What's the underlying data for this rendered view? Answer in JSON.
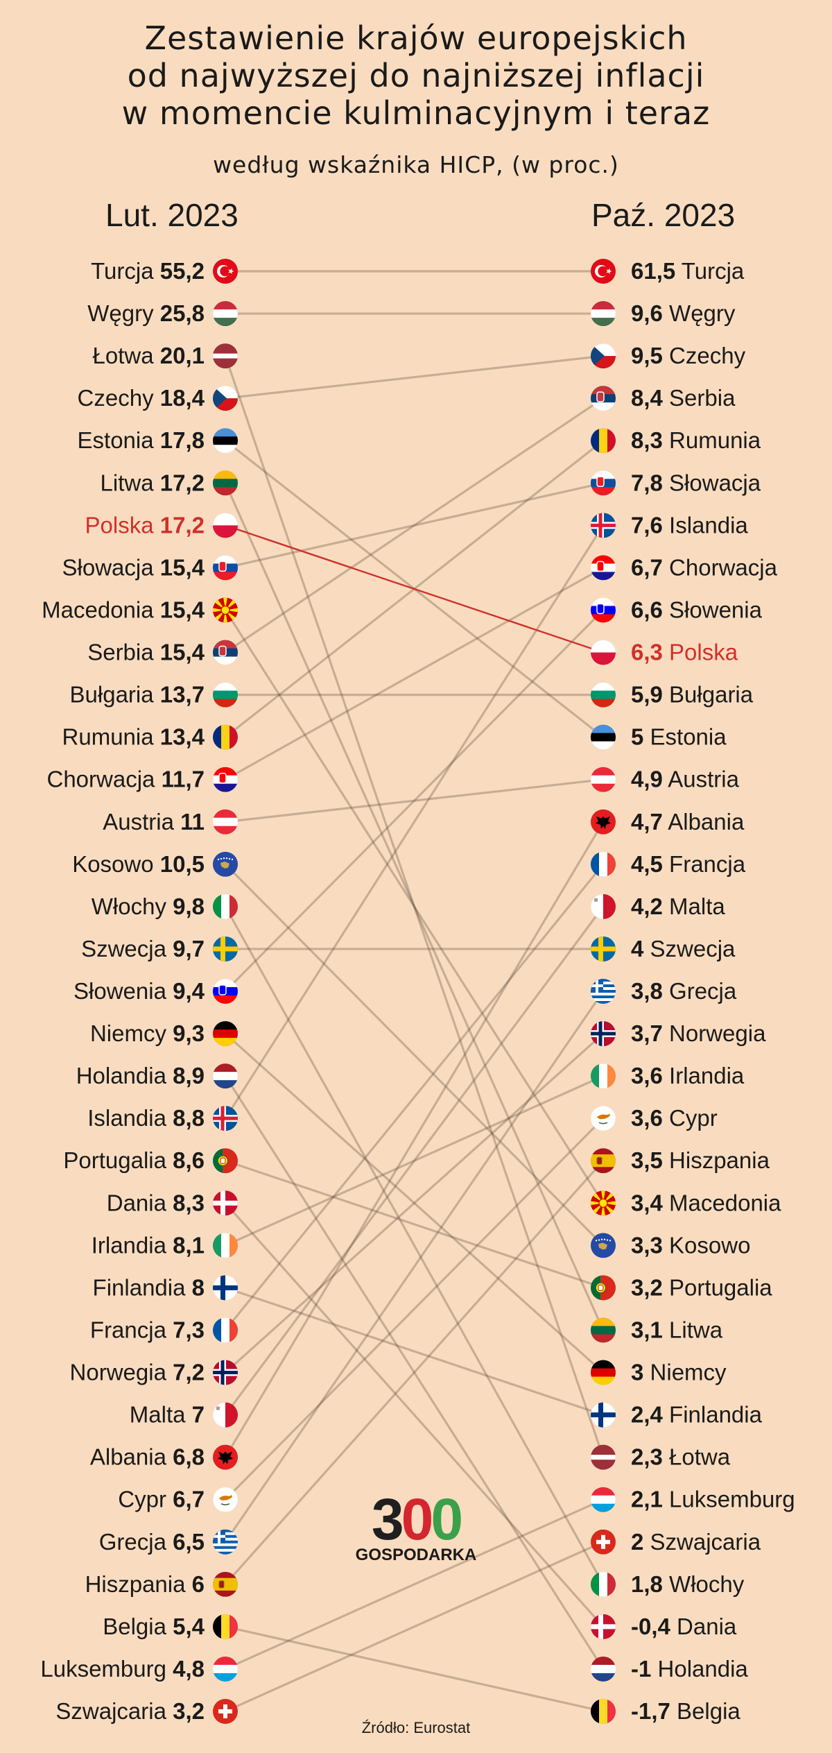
{
  "title": {
    "lines": [
      "Zestawienie krajów europejskich",
      "od najwyższej do najniższej inflacji",
      "w momencie kulminacyjnym i teraz"
    ],
    "subtitle": "według wskaźnika HICP, (w proc.)"
  },
  "left_header": "Lut. 2023",
  "right_header": "Paź. 2023",
  "source": "Źródło: Eurostat",
  "logo": {
    "digits": [
      "3",
      "0",
      "0"
    ],
    "text": "GOSPODARKA"
  },
  "colors": {
    "background": "#f9dcbf",
    "highlight": "#d0302b",
    "connector": "#5a4a3a"
  },
  "highlight_country": "Polska",
  "chart_data": {
    "type": "slope",
    "periods": [
      "Lut. 2023",
      "Paź. 2023"
    ],
    "left": [
      {
        "name": "Turcja",
        "value": "55,2",
        "flag": "turkey-flag"
      },
      {
        "name": "Węgry",
        "value": "25,8",
        "flag": "hungary-flag"
      },
      {
        "name": "Łotwa",
        "value": "20,1",
        "flag": "latvia-flag"
      },
      {
        "name": "Czechy",
        "value": "18,4",
        "flag": "czechia-flag"
      },
      {
        "name": "Estonia",
        "value": "17,8",
        "flag": "estonia-flag"
      },
      {
        "name": "Litwa",
        "value": "17,2",
        "flag": "lithuania-flag"
      },
      {
        "name": "Polska",
        "value": "17,2",
        "flag": "poland-flag"
      },
      {
        "name": "Słowacja",
        "value": "15,4",
        "flag": "slovakia-flag"
      },
      {
        "name": "Macedonia",
        "value": "15,4",
        "flag": "macedonia-flag"
      },
      {
        "name": "Serbia",
        "value": "15,4",
        "flag": "serbia-flag"
      },
      {
        "name": "Bułgaria",
        "value": "13,7",
        "flag": "bulgaria-flag"
      },
      {
        "name": "Rumunia",
        "value": "13,4",
        "flag": "romania-flag"
      },
      {
        "name": "Chorwacja",
        "value": "11,7",
        "flag": "croatia-flag"
      },
      {
        "name": "Austria",
        "value": "11",
        "flag": "austria-flag"
      },
      {
        "name": "Kosowo",
        "value": "10,5",
        "flag": "kosovo-flag"
      },
      {
        "name": "Włochy",
        "value": "9,8",
        "flag": "italy-flag"
      },
      {
        "name": "Szwecja",
        "value": "9,7",
        "flag": "sweden-flag"
      },
      {
        "name": "Słowenia",
        "value": "9,4",
        "flag": "slovenia-flag"
      },
      {
        "name": "Niemcy",
        "value": "9,3",
        "flag": "germany-flag"
      },
      {
        "name": "Holandia",
        "value": "8,9",
        "flag": "netherlands-flag"
      },
      {
        "name": "Islandia",
        "value": "8,8",
        "flag": "iceland-flag"
      },
      {
        "name": "Portugalia",
        "value": "8,6",
        "flag": "portugal-flag"
      },
      {
        "name": "Dania",
        "value": "8,3",
        "flag": "denmark-flag"
      },
      {
        "name": "Irlandia",
        "value": "8,1",
        "flag": "ireland-flag"
      },
      {
        "name": "Finlandia",
        "value": "8",
        "flag": "finland-flag"
      },
      {
        "name": "Francja",
        "value": "7,3",
        "flag": "france-flag"
      },
      {
        "name": "Norwegia",
        "value": "7,2",
        "flag": "norway-flag"
      },
      {
        "name": "Malta",
        "value": "7",
        "flag": "malta-flag"
      },
      {
        "name": "Albania",
        "value": "6,8",
        "flag": "albania-flag"
      },
      {
        "name": "Cypr",
        "value": "6,7",
        "flag": "cyprus-flag"
      },
      {
        "name": "Grecja",
        "value": "6,5",
        "flag": "greece-flag"
      },
      {
        "name": "Hiszpania",
        "value": "6",
        "flag": "spain-flag"
      },
      {
        "name": "Belgia",
        "value": "5,4",
        "flag": "belgium-flag"
      },
      {
        "name": "Luksemburg",
        "value": "4,8",
        "flag": "luxembourg-flag"
      },
      {
        "name": "Szwajcaria",
        "value": "3,2",
        "flag": "switzerland-flag"
      }
    ],
    "right": [
      {
        "name": "Turcja",
        "value": "61,5",
        "flag": "turkey-flag"
      },
      {
        "name": "Węgry",
        "value": "9,6",
        "flag": "hungary-flag"
      },
      {
        "name": "Czechy",
        "value": "9,5",
        "flag": "czechia-flag"
      },
      {
        "name": "Serbia",
        "value": "8,4",
        "flag": "serbia-flag"
      },
      {
        "name": "Rumunia",
        "value": "8,3",
        "flag": "romania-flag"
      },
      {
        "name": "Słowacja",
        "value": "7,8",
        "flag": "slovakia-flag"
      },
      {
        "name": "Islandia",
        "value": "7,6",
        "flag": "iceland-flag"
      },
      {
        "name": "Chorwacja",
        "value": "6,7",
        "flag": "croatia-flag"
      },
      {
        "name": "Słowenia",
        "value": "6,6",
        "flag": "slovenia-flag"
      },
      {
        "name": "Polska",
        "value": "6,3",
        "flag": "poland-flag"
      },
      {
        "name": "Bułgaria",
        "value": "5,9",
        "flag": "bulgaria-flag"
      },
      {
        "name": "Estonia",
        "value": "5",
        "flag": "estonia-flag"
      },
      {
        "name": "Austria",
        "value": "4,9",
        "flag": "austria-flag"
      },
      {
        "name": "Albania",
        "value": "4,7",
        "flag": "albania-flag"
      },
      {
        "name": "Francja",
        "value": "4,5",
        "flag": "france-flag"
      },
      {
        "name": "Malta",
        "value": "4,2",
        "flag": "malta-flag"
      },
      {
        "name": "Szwecja",
        "value": "4",
        "flag": "sweden-flag"
      },
      {
        "name": "Grecja",
        "value": "3,8",
        "flag": "greece-flag"
      },
      {
        "name": "Norwegia",
        "value": "3,7",
        "flag": "norway-flag"
      },
      {
        "name": "Irlandia",
        "value": "3,6",
        "flag": "ireland-flag"
      },
      {
        "name": "Cypr",
        "value": "3,6",
        "flag": "cyprus-flag"
      },
      {
        "name": "Hiszpania",
        "value": "3,5",
        "flag": "spain-flag"
      },
      {
        "name": "Macedonia",
        "value": "3,4",
        "flag": "macedonia-flag"
      },
      {
        "name": "Kosowo",
        "value": "3,3",
        "flag": "kosovo-flag"
      },
      {
        "name": "Portugalia",
        "value": "3,2",
        "flag": "portugal-flag"
      },
      {
        "name": "Litwa",
        "value": "3,1",
        "flag": "lithuania-flag"
      },
      {
        "name": "Niemcy",
        "value": "3",
        "flag": "germany-flag"
      },
      {
        "name": "Finlandia",
        "value": "2,4",
        "flag": "finland-flag"
      },
      {
        "name": "Łotwa",
        "value": "2,3",
        "flag": "latvia-flag"
      },
      {
        "name": "Luksemburg",
        "value": "2,1",
        "flag": "luxembourg-flag"
      },
      {
        "name": "Szwajcaria",
        "value": "2",
        "flag": "switzerland-flag"
      },
      {
        "name": "Włochy",
        "value": "1,8",
        "flag": "italy-flag"
      },
      {
        "name": "Dania",
        "value": "-0,4",
        "flag": "denmark-flag"
      },
      {
        "name": "Holandia",
        "value": "-1",
        "flag": "netherlands-flag"
      },
      {
        "name": "Belgia",
        "value": "-1,7",
        "flag": "belgium-flag"
      }
    ]
  }
}
